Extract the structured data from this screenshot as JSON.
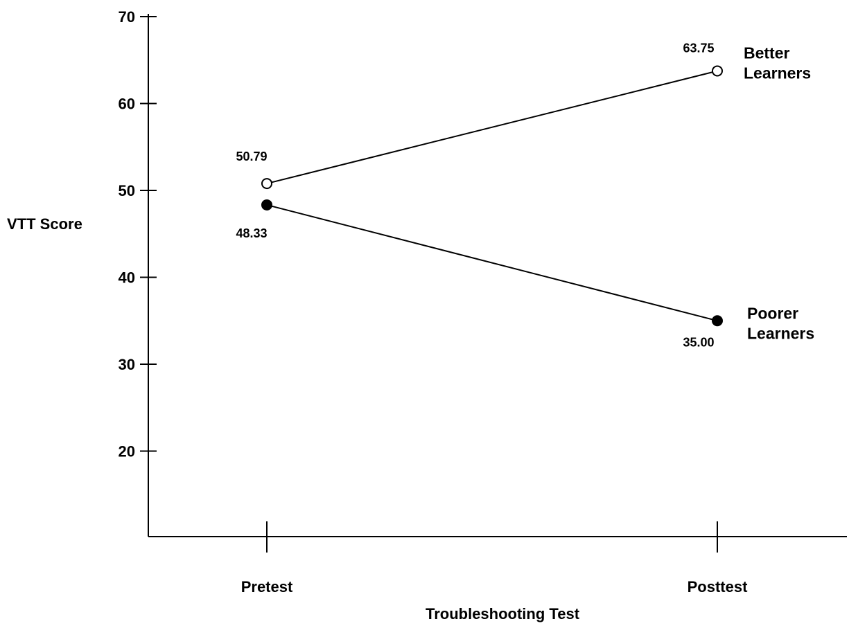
{
  "chart_data": {
    "type": "line",
    "xlabel": "Troubleshooting Test",
    "ylabel": "VTT Score",
    "categories": [
      "Pretest",
      "Posttest"
    ],
    "y_ticks": [
      20,
      30,
      40,
      50,
      60,
      70
    ],
    "ylim": [
      10,
      70
    ],
    "grid": false,
    "series": [
      {
        "name_lines": [
          "Better",
          "Learners"
        ],
        "marker": "open-circle",
        "values": [
          50.79,
          63.75
        ],
        "value_labels": [
          "50.79",
          "63.75"
        ]
      },
      {
        "name_lines": [
          "Poorer",
          "Learners"
        ],
        "marker": "filled-circle",
        "values": [
          48.33,
          35.0
        ],
        "value_labels": [
          "48.33",
          "35.00"
        ]
      }
    ]
  }
}
